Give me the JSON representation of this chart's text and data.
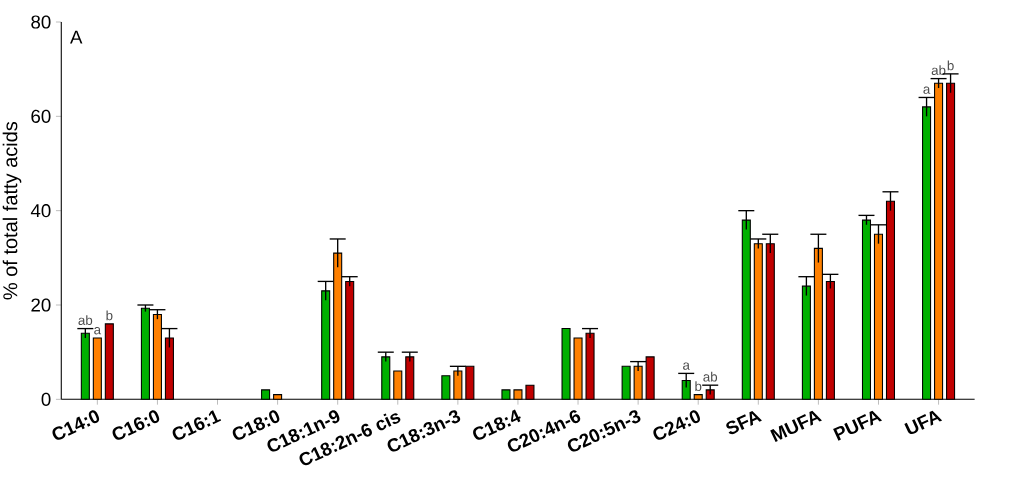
{
  "chart_data": {
    "type": "bar",
    "ylabel": "% of total fatty acids",
    "annotations": [
      "A"
    ],
    "categories": [
      "C14:0",
      "C16:0",
      "C16:1",
      "C18:0",
      "C18:1n-9",
      "C18:2n-6 cis",
      "C18:3n-3",
      "C18:4",
      "C20:4n-6",
      "C20:5n-3",
      "C24:0",
      "SFA",
      "MUFA",
      "PUFA",
      "UFA"
    ],
    "series": [
      {
        "color": "#00b000",
        "values": [
          14,
          19.3,
          0,
          2,
          23,
          9,
          5,
          2,
          15,
          7,
          4,
          38,
          24,
          38,
          62
        ],
        "errors": [
          1,
          0.7,
          null,
          null,
          2,
          1,
          null,
          null,
          null,
          null,
          1.5,
          2,
          2,
          1,
          2
        ],
        "value_labels": [
          "ab",
          null,
          null,
          null,
          null,
          null,
          null,
          null,
          null,
          null,
          "a",
          null,
          null,
          null,
          "a"
        ]
      },
      {
        "color": "#ff8000",
        "values": [
          13,
          18,
          0,
          1,
          31,
          6,
          6,
          2,
          13,
          7,
          1,
          33,
          32,
          35,
          67
        ],
        "errors": [
          null,
          1,
          null,
          null,
          3,
          null,
          1,
          null,
          null,
          1,
          null,
          1,
          3,
          2,
          1
        ],
        "value_labels": [
          "a",
          null,
          null,
          null,
          null,
          null,
          null,
          null,
          null,
          null,
          "b",
          null,
          null,
          null,
          "ab"
        ]
      },
      {
        "color": "#c00000",
        "values": [
          16,
          13,
          0,
          0,
          25,
          9,
          7,
          3,
          14,
          9,
          2,
          33,
          25,
          42,
          67
        ],
        "errors": [
          null,
          2,
          null,
          null,
          1,
          1,
          null,
          null,
          1,
          null,
          1,
          2,
          1.5,
          2,
          2
        ],
        "value_labels": [
          "b",
          null,
          null,
          null,
          null,
          null,
          null,
          null,
          null,
          null,
          "ab",
          null,
          null,
          null,
          "b"
        ]
      }
    ],
    "ylim": [
      0,
      80
    ],
    "yticks": [
      0,
      20,
      40,
      60,
      80
    ]
  }
}
